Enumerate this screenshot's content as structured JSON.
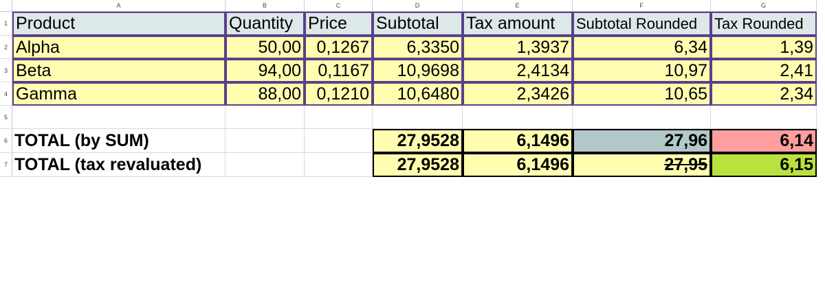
{
  "columns": [
    "A",
    "B",
    "C",
    "D",
    "E",
    "F",
    "G"
  ],
  "rows": [
    "1",
    "2",
    "3",
    "4",
    "5",
    "6",
    "7"
  ],
  "header": {
    "product": "Product",
    "quantity": "Quantity",
    "price": "Price",
    "subtotal": "Subtotal",
    "tax_amount": "Tax amount",
    "subtotal_rounded": "Subtotal Rounded",
    "tax_rounded": "Tax Rounded"
  },
  "data_rows": [
    {
      "product": "Alpha",
      "quantity": "50,00",
      "price": "0,1267",
      "subtotal": "6,3350",
      "tax_amount": "1,3937",
      "subtotal_rounded": "6,34",
      "tax_rounded": "1,39"
    },
    {
      "product": "Beta",
      "quantity": "94,00",
      "price": "0,1167",
      "subtotal": "10,9698",
      "tax_amount": "2,4134",
      "subtotal_rounded": "10,97",
      "tax_rounded": "2,41"
    },
    {
      "product": "Gamma",
      "quantity": "88,00",
      "price": "0,1210",
      "subtotal": "10,6480",
      "tax_amount": "2,3426",
      "subtotal_rounded": "10,65",
      "tax_rounded": "2,34"
    }
  ],
  "totals": [
    {
      "label": "TOTAL (by SUM)",
      "subtotal": "27,9528",
      "tax_amount": "6,1496",
      "subtotal_rounded": "27,96",
      "tax_rounded": "6,14"
    },
    {
      "label": "TOTAL (tax revaluated)",
      "subtotal": "27,9528",
      "tax_amount": "6,1496",
      "subtotal_rounded": "27,95",
      "tax_rounded": "6,15"
    }
  ],
  "colors": {
    "header_fill": "#dde8e8",
    "data_fill": "#fffeb0",
    "border_purple": "#5b3f8c",
    "sum_rounded_fill": "#b3c9c9",
    "sum_tax_fill": "#ff9e9e",
    "revaluated_tax_fill": "#b9e23e"
  }
}
